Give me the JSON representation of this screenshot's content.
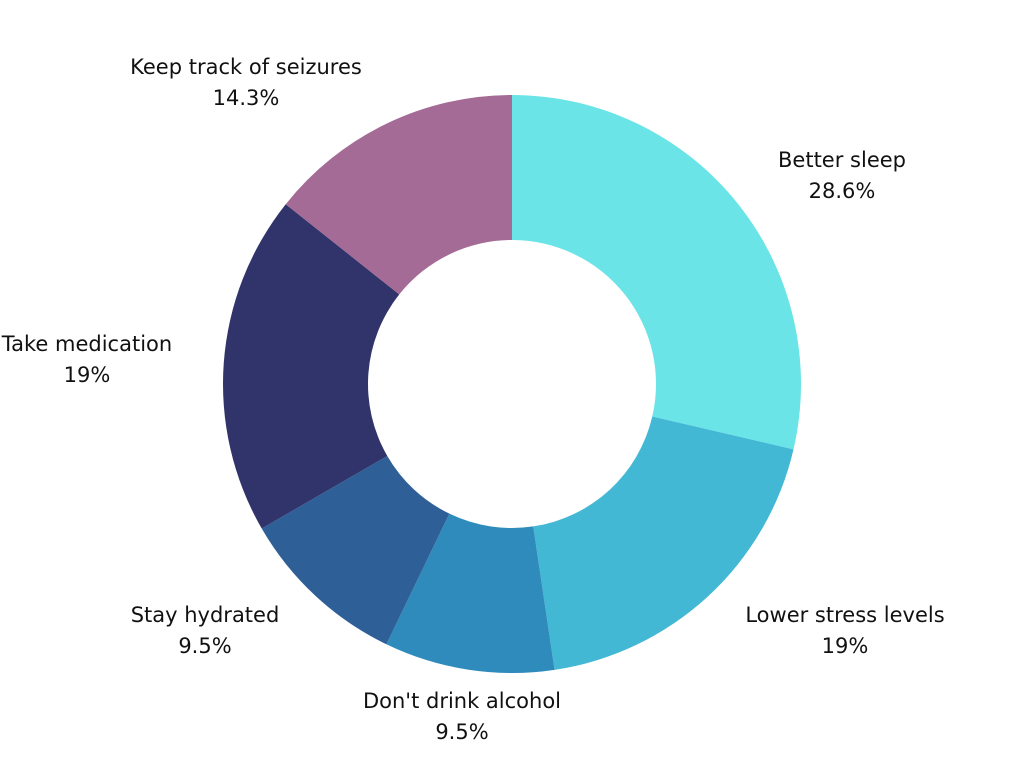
{
  "chart_data": {
    "type": "pie",
    "donut": true,
    "start_angle_deg": 0,
    "direction": "clockwise",
    "slices": [
      {
        "label": "Better sleep",
        "value": 28.6,
        "value_label": "28.6%",
        "color": "#6ae4e7"
      },
      {
        "label": "Lower stress levels",
        "value": 19,
        "value_label": "19%",
        "color": "#43b8d5"
      },
      {
        "label": "Don't drink alcohol",
        "value": 9.5,
        "value_label": "9.5%",
        "color": "#2e8bbb"
      },
      {
        "label": "Stay hydrated",
        "value": 9.5,
        "value_label": "9.5%",
        "color": "#2f5f97"
      },
      {
        "label": "Take medication",
        "value": 19,
        "value_label": "19%",
        "color": "#31346b"
      },
      {
        "label": "Keep track of seizures",
        "value": 14.3,
        "value_label": "14.3%",
        "color": "#a46b96"
      }
    ]
  }
}
